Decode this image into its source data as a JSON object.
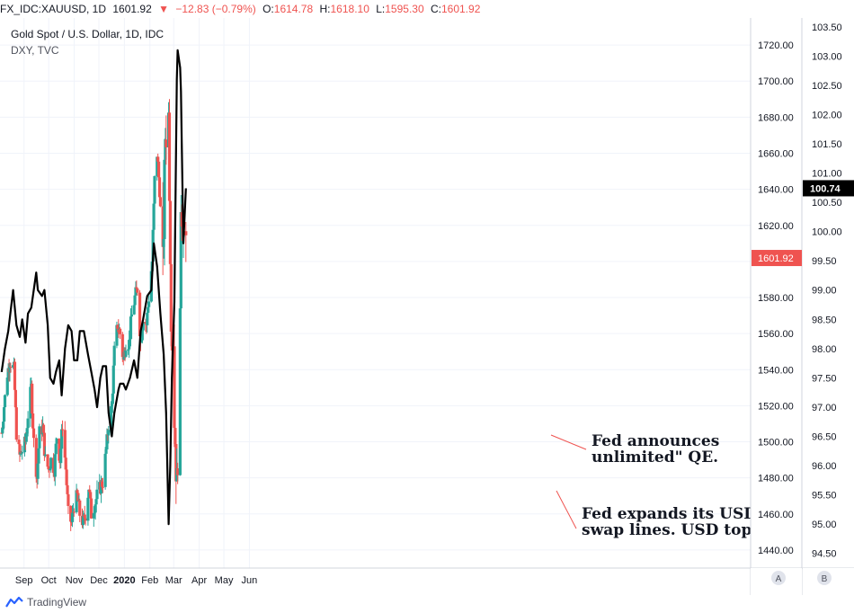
{
  "header": {
    "symbol": "FX_IDC:XAUUSD, 1D",
    "last": "1601.92",
    "change_arrow": "▼",
    "change": "−12.83 (−0.79%)",
    "o_label": "O:",
    "o_value": "1614.78",
    "h_label": "H:",
    "h_value": "1618.10",
    "l_label": "L:",
    "l_value": "1595.30",
    "c_label": "C:",
    "c_value": "1601.92"
  },
  "legend": {
    "main": "Gold Spot / U.S. Dollar, 1D, IDC",
    "overlay": "DXY, TVC"
  },
  "annotations": [
    {
      "text": [
        "Fed announces",
        "unlimited\" QE."
      ]
    },
    {
      "text": [
        "Fed expands its USD",
        "swap lines. USD tops."
      ]
    }
  ],
  "branding": {
    "label": "TradingView"
  },
  "scale_buttons": [
    "A",
    "B"
  ],
  "colors": {
    "up": "#26a69a",
    "down": "#ef5350",
    "dxy": "#000000",
    "grid": "#f0f3fa",
    "annotation_line": "#ef5350"
  },
  "chart_data": {
    "type": "candlestick_with_line_overlay",
    "x_ticks": [
      "Sep",
      "Oct",
      "Nov",
      "Dec",
      "2020",
      "Feb",
      "Mar",
      "Apr",
      "May",
      "Jun"
    ],
    "price_axis": {
      "ticks": [
        "1720.00",
        "1700.00",
        "1680.00",
        "1660.00",
        "1640.00",
        "1620.00",
        "1600.00",
        "1580.00",
        "1560.00",
        "1540.00",
        "1520.00",
        "1500.00",
        "1480.00",
        "1460.00",
        "1440.00"
      ],
      "range": [
        1430,
        1735
      ]
    },
    "dxy_axis": {
      "ticks": [
        "103.50",
        "103.00",
        "102.50",
        "102.00",
        "101.50",
        "101.00",
        "100.50",
        "100.00",
        "99.50",
        "99.00",
        "98.50",
        "98.00",
        "97.50",
        "97.00",
        "96.50",
        "96.00",
        "95.50",
        "95.00",
        "94.50"
      ],
      "range": [
        94.25,
        103.65
      ]
    },
    "price_label": "1601.92",
    "dxy_label": "100.74",
    "gold_close_points": [
      [
        "2019-08-19",
        1505
      ],
      [
        "2019-08-22",
        1520
      ],
      [
        "2019-08-26",
        1538
      ],
      [
        "2019-08-29",
        1545
      ],
      [
        "2019-09-03",
        1540
      ],
      [
        "2019-09-06",
        1505
      ],
      [
        "2019-09-10",
        1492
      ],
      [
        "2019-09-13",
        1495
      ],
      [
        "2019-09-17",
        1500
      ],
      [
        "2019-09-20",
        1515
      ],
      [
        "2019-09-24",
        1530
      ],
      [
        "2019-09-27",
        1500
      ],
      [
        "2019-10-01",
        1480
      ],
      [
        "2019-10-04",
        1505
      ],
      [
        "2019-10-08",
        1508
      ],
      [
        "2019-10-11",
        1490
      ],
      [
        "2019-10-15",
        1485
      ],
      [
        "2019-10-18",
        1490
      ],
      [
        "2019-10-22",
        1485
      ],
      [
        "2019-10-25",
        1503
      ],
      [
        "2019-10-29",
        1490
      ],
      [
        "2019-11-01",
        1510
      ],
      [
        "2019-11-05",
        1485
      ],
      [
        "2019-11-08",
        1460
      ],
      [
        "2019-11-12",
        1455
      ],
      [
        "2019-11-15",
        1465
      ],
      [
        "2019-11-19",
        1470
      ],
      [
        "2019-11-22",
        1460
      ],
      [
        "2019-11-26",
        1455
      ],
      [
        "2019-11-29",
        1460
      ],
      [
        "2019-12-03",
        1475
      ],
      [
        "2019-12-06",
        1460
      ],
      [
        "2019-12-10",
        1465
      ],
      [
        "2019-12-13",
        1470
      ],
      [
        "2019-12-17",
        1475
      ],
      [
        "2019-12-20",
        1478
      ],
      [
        "2019-12-24",
        1495
      ],
      [
        "2019-12-27",
        1510
      ],
      [
        "2019-12-31",
        1520
      ],
      [
        "2020-01-03",
        1550
      ],
      [
        "2020-01-07",
        1565
      ],
      [
        "2020-01-10",
        1560
      ],
      [
        "2020-01-14",
        1545
      ],
      [
        "2020-01-17",
        1555
      ],
      [
        "2020-01-21",
        1555
      ],
      [
        "2020-01-24",
        1570
      ],
      [
        "2020-01-28",
        1580
      ],
      [
        "2020-01-31",
        1585
      ],
      [
        "2020-02-04",
        1555
      ],
      [
        "2020-02-07",
        1570
      ],
      [
        "2020-02-11",
        1565
      ],
      [
        "2020-02-14",
        1580
      ],
      [
        "2020-02-18",
        1600
      ],
      [
        "2020-02-21",
        1645
      ],
      [
        "2020-02-24",
        1660
      ],
      [
        "2020-02-27",
        1640
      ],
      [
        "2020-03-02",
        1595
      ],
      [
        "2020-03-05",
        1670
      ],
      [
        "2020-03-09",
        1680
      ],
      [
        "2020-03-12",
        1575
      ],
      [
        "2020-03-16",
        1515
      ],
      [
        "2020-03-19",
        1475
      ],
      [
        "2020-03-20",
        1495
      ],
      [
        "2020-03-23",
        1560
      ],
      [
        "2020-03-24",
        1635
      ],
      [
        "2020-03-26",
        1625
      ],
      [
        "2020-03-27",
        1615
      ],
      [
        "2020-03-30",
        1601.92
      ]
    ],
    "dxy_points": [
      [
        "2019-08-19",
        97.6
      ],
      [
        "2019-08-23",
        98.0
      ],
      [
        "2019-08-27",
        98.3
      ],
      [
        "2019-09-02",
        99.0
      ],
      [
        "2019-09-06",
        98.4
      ],
      [
        "2019-09-10",
        98.2
      ],
      [
        "2019-09-13",
        98.5
      ],
      [
        "2019-09-17",
        98.1
      ],
      [
        "2019-09-20",
        98.6
      ],
      [
        "2019-09-24",
        98.7
      ],
      [
        "2019-09-30",
        99.3
      ],
      [
        "2019-10-02",
        99.0
      ],
      [
        "2019-10-07",
        98.9
      ],
      [
        "2019-10-10",
        99.0
      ],
      [
        "2019-10-14",
        98.4
      ],
      [
        "2019-10-17",
        97.5
      ],
      [
        "2019-10-21",
        97.4
      ],
      [
        "2019-10-24",
        97.6
      ],
      [
        "2019-10-28",
        97.8
      ],
      [
        "2019-10-31",
        97.2
      ],
      [
        "2019-11-04",
        98.0
      ],
      [
        "2019-11-08",
        98.4
      ],
      [
        "2019-11-12",
        98.3
      ],
      [
        "2019-11-15",
        97.8
      ],
      [
        "2019-11-19",
        97.8
      ],
      [
        "2019-11-22",
        98.3
      ],
      [
        "2019-11-27",
        98.3
      ],
      [
        "2019-12-02",
        97.9
      ],
      [
        "2019-12-06",
        97.6
      ],
      [
        "2019-12-10",
        97.3
      ],
      [
        "2019-12-13",
        97.0
      ],
      [
        "2019-12-17",
        97.5
      ],
      [
        "2019-12-20",
        97.7
      ],
      [
        "2019-12-24",
        97.7
      ],
      [
        "2019-12-27",
        96.9
      ],
      [
        "2019-12-31",
        96.5
      ],
      [
        "2020-01-03",
        96.9
      ],
      [
        "2020-01-08",
        97.3
      ],
      [
        "2020-01-10",
        97.4
      ],
      [
        "2020-01-14",
        97.4
      ],
      [
        "2020-01-17",
        97.3
      ],
      [
        "2020-01-22",
        97.5
      ],
      [
        "2020-01-27",
        97.8
      ],
      [
        "2020-01-31",
        97.5
      ],
      [
        "2020-02-04",
        98.3
      ],
      [
        "2020-02-07",
        98.5
      ],
      [
        "2020-02-12",
        98.9
      ],
      [
        "2020-02-17",
        99.0
      ],
      [
        "2020-02-20",
        99.8
      ],
      [
        "2020-02-24",
        99.4
      ],
      [
        "2020-02-28",
        98.6
      ],
      [
        "2020-03-03",
        97.9
      ],
      [
        "2020-03-06",
        96.9
      ],
      [
        "2020-03-09",
        95.0
      ],
      [
        "2020-03-11",
        96.0
      ],
      [
        "2020-03-13",
        97.5
      ],
      [
        "2020-03-16",
        98.8
      ],
      [
        "2020-03-19",
        102.6
      ],
      [
        "2020-03-20",
        103.1
      ],
      [
        "2020-03-23",
        102.8
      ],
      [
        "2020-03-24",
        102.4
      ],
      [
        "2020-03-25",
        101.5
      ],
      [
        "2020-03-27",
        99.8
      ],
      [
        "2020-03-30",
        100.74
      ]
    ]
  }
}
